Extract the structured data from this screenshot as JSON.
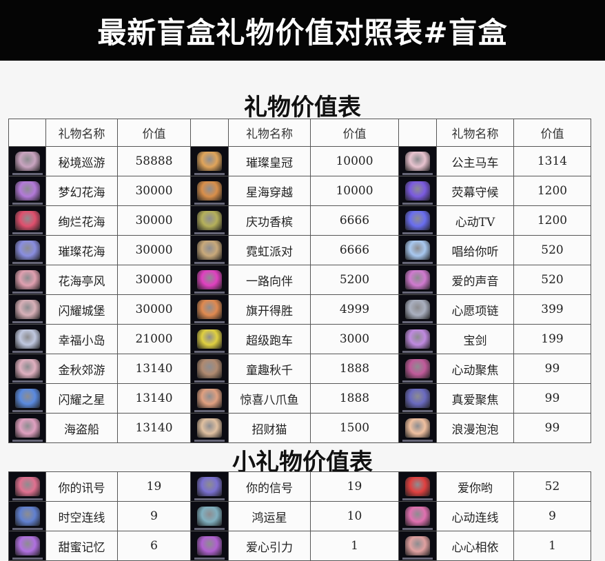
{
  "banner_title": "最新盲盒礼物价值对照表#盲盒",
  "main_title": "礼物价值表",
  "small_title": "小礼物价值表",
  "headers": {
    "name": "礼物名称",
    "value": "价值"
  },
  "main_table": [
    [
      [
        "秘境巡游",
        "58888",
        "#c9a4c0"
      ],
      [
        "璀璨皇冠",
        "10000",
        "#e0a45a"
      ],
      [
        "公主马车",
        "1314",
        "#e8c3cf"
      ]
    ],
    [
      [
        "梦幻花海",
        "30000",
        "#b37ad9"
      ],
      [
        "星海穿越",
        "10000",
        "#d98f4a"
      ],
      [
        "荧幕守候",
        "1200",
        "#7b5be0"
      ]
    ],
    [
      [
        "绚烂花海",
        "30000",
        "#e0506e"
      ],
      [
        "庆功香槟",
        "6666",
        "#b5b05a"
      ],
      [
        "心动TV",
        "1200",
        "#6a6ef0"
      ]
    ],
    [
      [
        "璀璨花海",
        "30000",
        "#8a8ee0"
      ],
      [
        "霓虹派对",
        "6666",
        "#c9a97a"
      ],
      [
        "唱给你听",
        "520",
        "#a8c8f0"
      ]
    ],
    [
      [
        "花海亭风",
        "30000",
        "#e0a0b0"
      ],
      [
        "一路向伴",
        "5200",
        "#e040c0"
      ],
      [
        "爱的声音",
        "520",
        "#d07ad0"
      ]
    ],
    [
      [
        "闪耀城堡",
        "30000",
        "#d8b0b8"
      ],
      [
        "旗开得胜",
        "4999",
        "#e08a50"
      ],
      [
        "心愿项链",
        "399",
        "#aab0c0"
      ]
    ],
    [
      [
        "幸福小岛",
        "21000",
        "#c0c8e0"
      ],
      [
        "超级跑车",
        "3000",
        "#e0d040"
      ],
      [
        "宝剑",
        "199",
        "#c08ae0"
      ]
    ],
    [
      [
        "金秋郊游",
        "13140",
        "#e0b0c0"
      ],
      [
        "童趣秋千",
        "1888",
        "#b08a70"
      ],
      [
        "心动聚焦",
        "99",
        "#c05a9a"
      ]
    ],
    [
      [
        "闪耀之星",
        "13140",
        "#5a8ae0"
      ],
      [
        "惊喜八爪鱼",
        "1888",
        "#e0a080"
      ],
      [
        "真爱聚焦",
        "99",
        "#6a6ac0"
      ]
    ],
    [
      [
        "海盗船",
        "13140",
        "#e0a0c0"
      ],
      [
        "招财猫",
        "1500",
        "#e0c0a0"
      ],
      [
        "浪漫泡泡",
        "99",
        "#f0c0a0"
      ]
    ]
  ],
  "small_table": [
    [
      [
        "你的讯号",
        "19",
        "#e07090"
      ],
      [
        "你的信号",
        "19",
        "#7a70d0"
      ],
      [
        "爱你哟",
        "52",
        "#e04040"
      ]
    ],
    [
      [
        "时空连线",
        "9",
        "#6080d0"
      ],
      [
        "鸿运星",
        "10",
        "#80b0c0"
      ],
      [
        "心动连线",
        "9",
        "#e070b0"
      ]
    ],
    [
      [
        "甜蜜记忆",
        "6",
        "#b070e0"
      ],
      [
        "爱心引力",
        "1",
        "#b060d0"
      ],
      [
        "心心相依",
        "1",
        "#e0a0a0"
      ]
    ]
  ]
}
